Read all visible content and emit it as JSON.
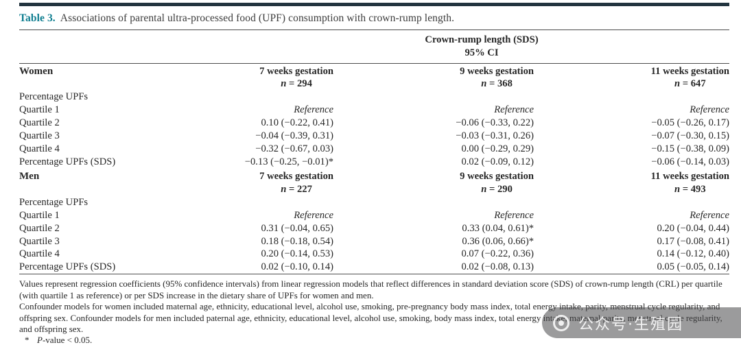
{
  "colors": {
    "accent": "#0f7e90",
    "bar": "#22343f",
    "rule": "#4c4c4c",
    "ink": "#262626"
  },
  "caption": {
    "label": "Table 3.",
    "text": "Associations of parental ultra-processed food (UPF) consumption with crown-rump length."
  },
  "table": {
    "spanner": {
      "line1": "Crown-rump length (SDS)",
      "line2": "95% CI"
    },
    "sections": [
      {
        "group": "Women",
        "columns": [
          {
            "title": "7 weeks gestation",
            "n": "n = 294"
          },
          {
            "title": "9 weeks gestation",
            "n": "n = 368"
          },
          {
            "title": "11 weeks gestation",
            "n": "n = 647"
          }
        ],
        "rows": [
          {
            "label": "Percentage UPFs",
            "values": [
              "",
              "",
              ""
            ]
          },
          {
            "label": "Quartile 1",
            "values": [
              "Reference",
              "Reference",
              "Reference"
            ]
          },
          {
            "label": "Quartile 2",
            "values": [
              "0.10 (−0.22, 0.41)",
              "−0.06 (−0.33, 0.22)",
              "−0.05 (−0.26, 0.17)"
            ]
          },
          {
            "label": "Quartile 3",
            "values": [
              "−0.04 (−0.39, 0.31)",
              "−0.03 (−0.31, 0.26)",
              "−0.07 (−0.30, 0.15)"
            ]
          },
          {
            "label": "Quartile 4",
            "values": [
              "−0.32 (−0.67, 0.03)",
              "0.00 (−0.29, 0.29)",
              "−0.15 (−0.38, 0.09)"
            ]
          },
          {
            "label": "Percentage UPFs (SDS)",
            "values": [
              "−0.13 (−0.25, −0.01)*",
              "0.02 (−0.09, 0.12)",
              "−0.06 (−0.14, 0.03)"
            ]
          }
        ]
      },
      {
        "group": "Men",
        "columns": [
          {
            "title": "7 weeks gestation",
            "n": "n = 227"
          },
          {
            "title": "9 weeks gestation",
            "n": "n = 290"
          },
          {
            "title": "11 weeks gestation",
            "n": "n = 493"
          }
        ],
        "rows": [
          {
            "label": "Percentage UPFs",
            "values": [
              "",
              "",
              ""
            ]
          },
          {
            "label": "Quartile 1",
            "values": [
              "Reference",
              "Reference",
              "Reference"
            ]
          },
          {
            "label": "Quartile 2",
            "values": [
              "0.31 (−0.04, 0.65)",
              "0.33 (0.04, 0.61)*",
              "0.20 (−0.04, 0.44)"
            ]
          },
          {
            "label": "Quartile 3",
            "values": [
              "0.18 (−0.18, 0.54)",
              "0.36 (0.06, 0.66)*",
              "0.17 (−0.08, 0.41)"
            ]
          },
          {
            "label": "Quartile 4",
            "values": [
              "0.20 (−0.14, 0.53)",
              "0.07 (−0.22, 0.36)",
              "0.14 (−0.12, 0.40)"
            ]
          },
          {
            "label": "Percentage UPFs (SDS)",
            "values": [
              "0.02 (−0.10, 0.14)",
              "0.02 (−0.08, 0.13)",
              "0.05 (−0.05, 0.14)"
            ]
          }
        ]
      }
    ]
  },
  "footnotes": {
    "general": "Values represent regression coefficients (95% confidence intervals) from linear regression models that reflect differences in standard deviation score (SDS) of crown-rump length (CRL) per quartile (with quartile 1 as reference) or per SDS increase in the dietary share of UPFs for women and men.",
    "confounders": "Confounder models for women included maternal age, ethnicity, educational level, alcohol use, smoking, pre-pregnancy body mass index, total energy intake, parity, menstrual cycle regularity, and offspring sex. Confounder models for men included paternal age, ethnicity, educational level, alcohol use, smoking, body mass index, total energy intake, maternal parity, menstrual cycle regularity, and offspring sex.",
    "star": {
      "symbol": "*",
      "text": "P-value < 0.05."
    }
  },
  "watermark": {
    "text": "公众号·生殖园"
  }
}
